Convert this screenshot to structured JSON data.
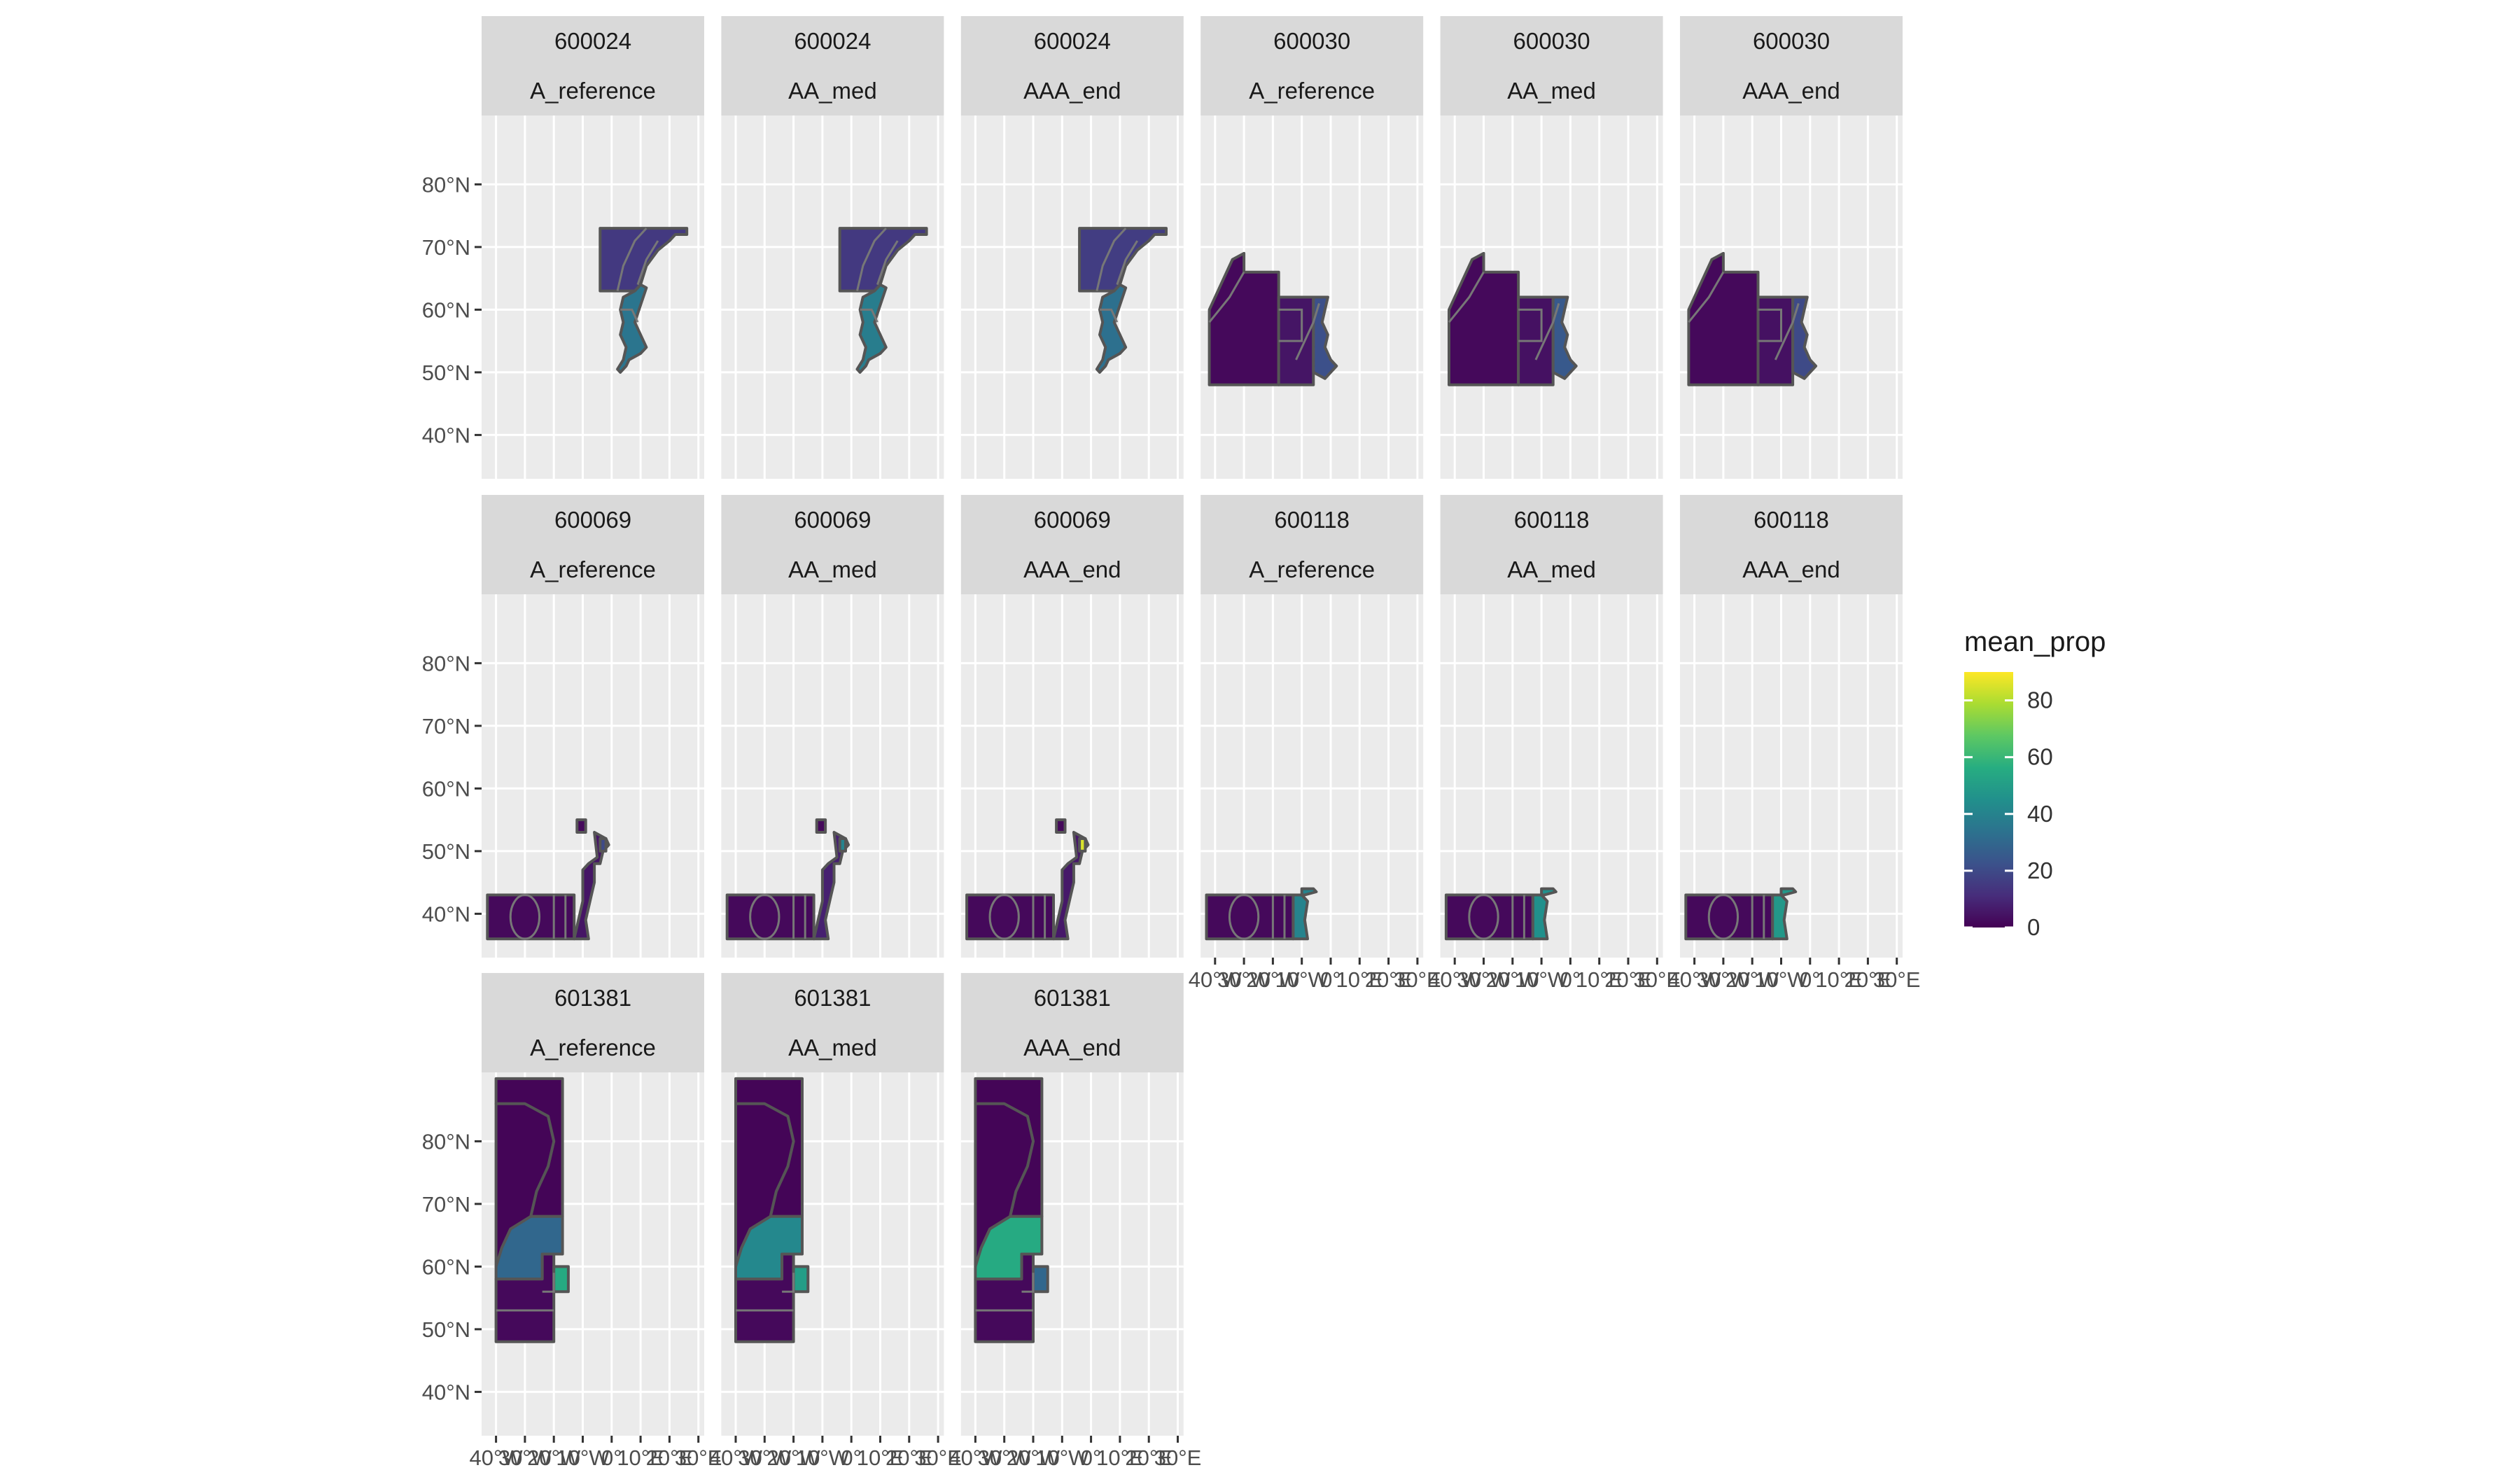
{
  "chart_data": {
    "type": "map",
    "facet_rows": [
      "id",
      "scenario"
    ],
    "y_ticks": [
      {
        "value": 40,
        "label": "40°N"
      },
      {
        "value": 50,
        "label": "50°N"
      },
      {
        "value": 60,
        "label": "60°N"
      },
      {
        "value": 70,
        "label": "70°N"
      },
      {
        "value": 80,
        "label": "80°N"
      }
    ],
    "x_ticks": [
      {
        "value": -40,
        "label": "40°W"
      },
      {
        "value": -30,
        "label": "30°W"
      },
      {
        "value": -20,
        "label": "20°W"
      },
      {
        "value": -10,
        "label": "10°W"
      },
      {
        "value": 0,
        "label": "0°"
      },
      {
        "value": 10,
        "label": "10°E"
      },
      {
        "value": 20,
        "label": "20°E"
      },
      {
        "value": 30,
        "label": "30°E"
      }
    ],
    "xlim": [
      -45,
      32
    ],
    "ylim": [
      33,
      91
    ],
    "legend": {
      "title": "mean_prop",
      "placement": "right",
      "ticks": [
        0,
        20,
        40,
        60,
        80
      ],
      "range": [
        0,
        90
      ],
      "colors": [
        "#440154",
        "#472D7B",
        "#3B528B",
        "#2C728E",
        "#21908C",
        "#27AD81",
        "#5DC863",
        "#AADC32",
        "#FDE725"
      ]
    },
    "panels": [
      {
        "id": "600024",
        "scenario": "A_reference",
        "row": 0,
        "col": 0,
        "show_x_axis": false,
        "fills": {
          "north": 15,
          "coast": 35
        }
      },
      {
        "id": "600024",
        "scenario": "AA_med",
        "row": 0,
        "col": 1,
        "show_x_axis": false,
        "fills": {
          "north": 15,
          "coast": 38
        }
      },
      {
        "id": "600024",
        "scenario": "AAA_end",
        "row": 0,
        "col": 2,
        "show_x_axis": false,
        "fills": {
          "north": 16,
          "coast": 33
        }
      },
      {
        "id": "600030",
        "scenario": "A_reference",
        "row": 0,
        "col": 3,
        "show_x_axis": false,
        "fills": {
          "west": 2,
          "mid": 5,
          "coast": 22
        }
      },
      {
        "id": "600030",
        "scenario": "AA_med",
        "row": 0,
        "col": 4,
        "show_x_axis": false,
        "fills": {
          "west": 2,
          "mid": 4,
          "coast": 25
        }
      },
      {
        "id": "600030",
        "scenario": "AAA_end",
        "row": 0,
        "col": 5,
        "show_x_axis": false,
        "fills": {
          "west": 2,
          "mid": 4,
          "coast": 20
        }
      },
      {
        "id": "600069",
        "scenario": "A_reference",
        "row": 1,
        "col": 0,
        "show_x_axis": false,
        "fills": {
          "box": 2,
          "coast": 5,
          "spot": 20
        }
      },
      {
        "id": "600069",
        "scenario": "AA_med",
        "row": 1,
        "col": 1,
        "show_x_axis": false,
        "fills": {
          "box": 2,
          "coast": 8,
          "spot": 40
        }
      },
      {
        "id": "600069",
        "scenario": "AAA_end",
        "row": 1,
        "col": 2,
        "show_x_axis": false,
        "fills": {
          "box": 2,
          "coast": 6,
          "spot": 85
        }
      },
      {
        "id": "600118",
        "scenario": "A_reference",
        "row": 1,
        "col": 3,
        "show_x_axis": true,
        "fills": {
          "box": 2,
          "coast": 40
        }
      },
      {
        "id": "600118",
        "scenario": "AA_med",
        "row": 1,
        "col": 4,
        "show_x_axis": true,
        "fills": {
          "box": 2,
          "coast": 45
        }
      },
      {
        "id": "600118",
        "scenario": "AAA_end",
        "row": 1,
        "col": 5,
        "show_x_axis": true,
        "fills": {
          "box": 2,
          "coast": 48
        }
      },
      {
        "id": "601381",
        "scenario": "A_reference",
        "row": 2,
        "col": 0,
        "show_x_axis": true,
        "fills": {
          "north": 1,
          "mid": 30,
          "south": 2,
          "east": 55
        }
      },
      {
        "id": "601381",
        "scenario": "AA_med",
        "row": 2,
        "col": 1,
        "show_x_axis": true,
        "fills": {
          "north": 1,
          "mid": 42,
          "south": 2,
          "east": 50
        }
      },
      {
        "id": "601381",
        "scenario": "AAA_end",
        "row": 2,
        "col": 2,
        "show_x_axis": true,
        "fills": {
          "north": 1,
          "mid": 55,
          "south": 2,
          "east": 30
        }
      }
    ]
  }
}
